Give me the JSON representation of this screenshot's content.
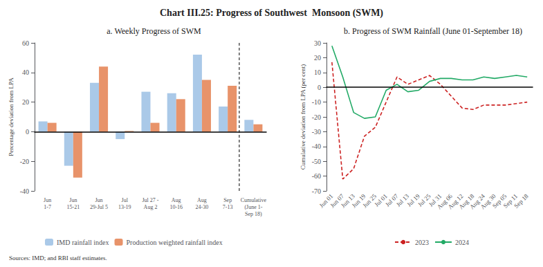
{
  "title": "Chart III.25: Progress of Southwest  Monsoon (SWM)",
  "source": "Sources: IMD; and RBI staff estimates.",
  "chart_data": [
    {
      "type": "bar",
      "title": "a. Weekly Progress of SWM",
      "categories": [
        "Jun\n1-7",
        "Jun\n15-21",
        "Jun\n29-Jul 5",
        "Jul\n13-19",
        "Jul 27 -\nAug 2",
        "Aug\n10-16",
        "Aug\n24-30",
        "Sep\n7-13",
        "Cumulative\n(June 1-\nSep 18)"
      ],
      "series": [
        {
          "name": "IMD rainfall index",
          "color": "#aac9e8",
          "values": [
            7,
            -23,
            33,
            -5,
            27,
            26,
            52,
            17,
            8
          ]
        },
        {
          "name": "Production weighted rainfall index",
          "color": "#e8936a",
          "values": [
            6,
            -31,
            44,
            0.5,
            6,
            22,
            35,
            31,
            5
          ]
        }
      ],
      "ylabel": "Percentage deviation from LPA",
      "ylim": [
        -40,
        60
      ],
      "yticks": [
        -40,
        -20,
        0,
        20,
        40,
        60
      ],
      "grid": false,
      "legend": "bottom"
    },
    {
      "type": "line",
      "title": "b. Progress of SWM Rainfall (June 01-September 18)",
      "categories": [
        "Jun 01",
        "Jun 07",
        "Jun 13",
        "Jun 19",
        "Jun 25",
        "Jul 01",
        "Jul 07",
        "Jul 13",
        "Jul 19",
        "Jul 25",
        "Jul 31",
        "Aug 06",
        "Aug 12",
        "Aug 18",
        "Aug 24",
        "Aug 30",
        "Sep 05",
        "Sep 11",
        "Sep 18"
      ],
      "series": [
        {
          "name": "2023",
          "color": "#cc2222",
          "line_style": "dashed",
          "values": [
            17,
            -62,
            -55,
            -33,
            -27,
            -10,
            7,
            2,
            5,
            8,
            2,
            -6,
            -14,
            -15,
            -12,
            -12,
            -12,
            -11,
            -10
          ]
        },
        {
          "name": "2024",
          "color": "#22aa66",
          "line_style": "solid",
          "values": [
            28,
            7,
            -17,
            -21,
            -20,
            -2,
            2,
            -3,
            -2,
            4,
            6,
            6,
            5,
            5,
            7,
            6,
            7,
            8,
            7
          ]
        }
      ],
      "ylabel": "Cumulative deviation from LPA (per cent)",
      "ylim": [
        -70,
        30
      ],
      "yticks": [
        -70,
        -60,
        -50,
        -40,
        -30,
        -20,
        -10,
        0,
        10,
        20,
        30
      ],
      "grid": false,
      "legend": "bottom"
    }
  ]
}
